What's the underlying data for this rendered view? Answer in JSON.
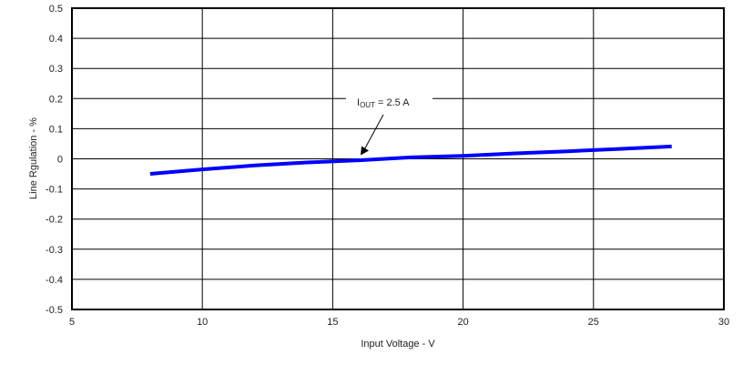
{
  "chart_data": {
    "type": "line",
    "title": "",
    "xlabel": "Input Voltage - V",
    "ylabel": "Line Rgulation - %",
    "xlim": [
      5,
      30
    ],
    "ylim": [
      -0.5,
      0.5
    ],
    "x_ticks": [
      "5",
      "10",
      "15",
      "20",
      "25",
      "30"
    ],
    "y_ticks": [
      "0.5",
      "0.4",
      "0.3",
      "0.2",
      "0.1",
      "0",
      "-0.1",
      "-0.2",
      "-0.3",
      "-0.4",
      "-0.5"
    ],
    "grid": true,
    "series": [
      {
        "name": "IOUT = 2.5 A",
        "color": "#0000ff",
        "x": [
          8,
          10,
          12,
          14,
          16,
          18,
          20,
          22,
          24,
          26,
          28
        ],
        "y": [
          -0.05,
          -0.035,
          -0.022,
          -0.012,
          -0.005,
          0.005,
          0.01,
          0.018,
          0.025,
          0.033,
          0.041
        ]
      }
    ],
    "annotations": [
      {
        "text_main": "I",
        "text_sub": "OUT",
        "text_rest": " = 2.5 A",
        "arrow_to_x": 16,
        "arrow_to_y": 0.0
      }
    ]
  }
}
